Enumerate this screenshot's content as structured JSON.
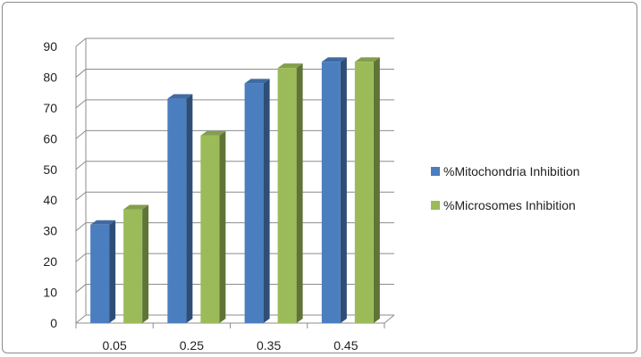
{
  "chart_data": {
    "type": "bar",
    "categories": [
      "0.05",
      "0.25",
      "0.35",
      "0.45"
    ],
    "series": [
      {
        "name": "%Mitochondria Inhibition",
        "values": [
          32,
          73,
          78,
          85
        ],
        "color": "#4a7ebf"
      },
      {
        "name": "%Microsomes Inhibition",
        "values": [
          37,
          61,
          83,
          85
        ],
        "color": "#9bbb59"
      }
    ],
    "ylim": [
      0,
      90
    ],
    "yticks": [
      "0",
      "10",
      "20",
      "30",
      "40",
      "50",
      "60",
      "70",
      "80",
      "90"
    ],
    "grid": true,
    "legend_position": "right"
  }
}
